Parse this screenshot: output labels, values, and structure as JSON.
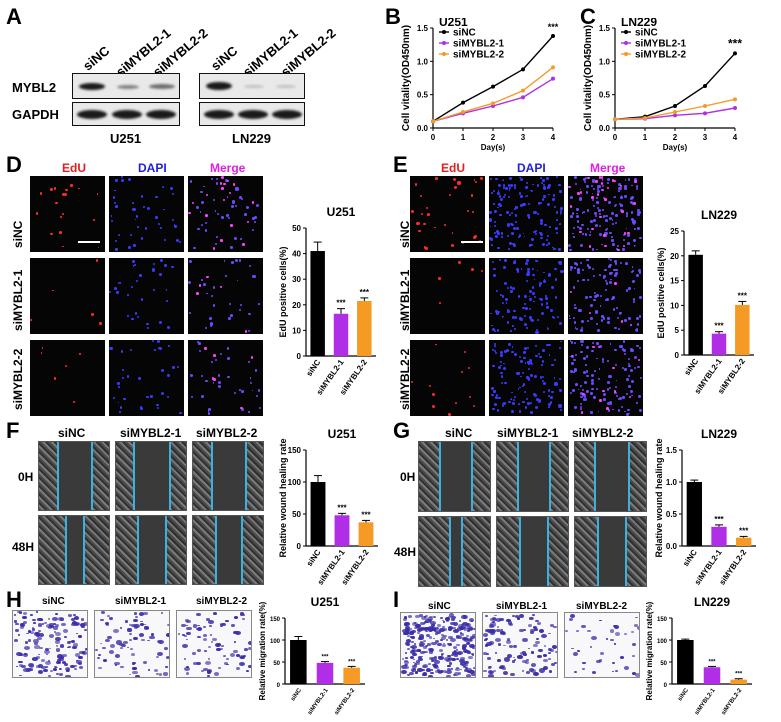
{
  "panels": {
    "A": "A",
    "B": "B",
    "C": "C",
    "D": "D",
    "E": "E",
    "F": "F",
    "G": "G",
    "H": "H",
    "I": "I"
  },
  "western": {
    "groups": [
      "siNC",
      "siMYBL2-1",
      "siMYBL2-2"
    ],
    "rows": [
      "MYBL2",
      "GAPDH"
    ],
    "cells": [
      "U251",
      "LN229"
    ]
  },
  "edu": {
    "stains": [
      "EdU",
      "DAPI",
      "Merge"
    ],
    "rows": [
      "siNC",
      "siMYBL2-1",
      "siMYBL2-2"
    ]
  },
  "wound": {
    "cols": [
      "siNC",
      "siMYBL2-1",
      "siMYBL2-2"
    ],
    "times": [
      "0H",
      "48H"
    ]
  },
  "transwell": {
    "cols": [
      "siNC",
      "siMYBL2-1",
      "siMYBL2-2"
    ]
  },
  "colors": {
    "siNC": "#000000",
    "siMYBL2-1": "#b02ee6",
    "siMYBL2-2": "#f59a25"
  },
  "chart_data": [
    {
      "id": "B",
      "type": "line",
      "title": "U251",
      "xlabel": "Day(s)",
      "ylabel": "Cell vitality(OD450nm)",
      "x": [
        0,
        1,
        2,
        3,
        4
      ],
      "xlim": [
        0,
        4
      ],
      "ylim": [
        0,
        1.5
      ],
      "yticks": [
        "0.0",
        "0.5",
        "1.0",
        "1.5"
      ],
      "xticks": [
        "0",
        "1",
        "2",
        "3",
        "4"
      ],
      "series": [
        {
          "name": "siNC",
          "values": [
            0.1,
            0.38,
            0.62,
            0.88,
            1.38
          ]
        },
        {
          "name": "siMYBL2-1",
          "values": [
            0.1,
            0.22,
            0.33,
            0.46,
            0.74
          ]
        },
        {
          "name": "siMYBL2-2",
          "values": [
            0.1,
            0.24,
            0.37,
            0.56,
            0.91
          ]
        }
      ],
      "annotation": "***"
    },
    {
      "id": "C",
      "type": "line",
      "title": "LN229",
      "xlabel": "Day(s)",
      "ylabel": "Cell vitality(OD450nm)",
      "x": [
        0,
        1,
        2,
        3,
        4
      ],
      "xlim": [
        0,
        4
      ],
      "ylim": [
        0,
        1.5
      ],
      "yticks": [
        "0.0",
        "0.5",
        "1.0",
        "1.5"
      ],
      "xticks": [
        "0",
        "1",
        "2",
        "3",
        "4"
      ],
      "series": [
        {
          "name": "siNC",
          "values": [
            0.13,
            0.17,
            0.33,
            0.63,
            1.12
          ]
        },
        {
          "name": "siMYBL2-1",
          "values": [
            0.13,
            0.14,
            0.19,
            0.22,
            0.3
          ]
        },
        {
          "name": "siMYBL2-2",
          "values": [
            0.13,
            0.15,
            0.24,
            0.33,
            0.43
          ]
        }
      ],
      "annotation": "***"
    },
    {
      "id": "D",
      "type": "bar",
      "title": "U251",
      "ylabel": "EdU positive cells(%)",
      "categories": [
        "siNC",
        "siMYBL2-1",
        "siMYBL2-2"
      ],
      "values": [
        41,
        16.5,
        21.5
      ],
      "errors": [
        3.5,
        2,
        1.2
      ],
      "ylim": [
        0,
        50
      ],
      "yticks": [
        "0",
        "10",
        "20",
        "30",
        "40",
        "50"
      ],
      "sig": [
        "",
        "***",
        "***"
      ]
    },
    {
      "id": "E",
      "type": "bar",
      "title": "LN229",
      "ylabel": "EdU positive cells(%)",
      "categories": [
        "siNC",
        "siMYBL2-1",
        "siMYBL2-2"
      ],
      "values": [
        20.2,
        4.3,
        10.1
      ],
      "errors": [
        0.8,
        0.4,
        0.7
      ],
      "ylim": [
        0,
        25
      ],
      "yticks": [
        "0",
        "5",
        "10",
        "15",
        "20",
        "25"
      ],
      "sig": [
        "",
        "***",
        "***"
      ]
    },
    {
      "id": "F",
      "type": "bar",
      "title": "U251",
      "ylabel": "Relative wound healing rate",
      "categories": [
        "siNC",
        "siMYBL2-1",
        "siMYBL2-2"
      ],
      "values": [
        100,
        48,
        37
      ],
      "errors": [
        10,
        3,
        3
      ],
      "ylim": [
        0,
        150
      ],
      "yticks": [
        "0",
        "50",
        "100",
        "150"
      ],
      "sig": [
        "",
        "***",
        "***"
      ]
    },
    {
      "id": "G",
      "type": "bar",
      "title": "LN229",
      "ylabel": "Relative wound healing rate",
      "categories": [
        "siNC",
        "siMYBL2-1",
        "siMYBL2-2"
      ],
      "values": [
        1.0,
        0.3,
        0.13
      ],
      "errors": [
        0.03,
        0.03,
        0.02
      ],
      "ylim": [
        0,
        1.5
      ],
      "yticks": [
        "0.0",
        "0.5",
        "1.0",
        "1.5"
      ],
      "sig": [
        "",
        "***",
        "***"
      ]
    },
    {
      "id": "H",
      "type": "bar",
      "title": "U251",
      "ylabel": "Relative migration rate(%)",
      "categories": [
        "siNC",
        "siMYBL2-1",
        "siMYBL2-2"
      ],
      "values": [
        100,
        48,
        37
      ],
      "errors": [
        8,
        3,
        3
      ],
      "ylim": [
        0,
        150
      ],
      "yticks": [
        "0",
        "50",
        "100",
        "150"
      ],
      "sig": [
        "",
        "***",
        "***"
      ]
    },
    {
      "id": "I",
      "type": "bar",
      "title": "LN229",
      "ylabel": "Relative migration rate(%)",
      "categories": [
        "siNC",
        "siMYBL2-1",
        "siMYBL2-2"
      ],
      "values": [
        100,
        38,
        10
      ],
      "errors": [
        2,
        2,
        2
      ],
      "ylim": [
        0,
        150
      ],
      "yticks": [
        "0",
        "50",
        "100",
        "150"
      ],
      "sig": [
        "",
        "***",
        "***"
      ]
    }
  ]
}
